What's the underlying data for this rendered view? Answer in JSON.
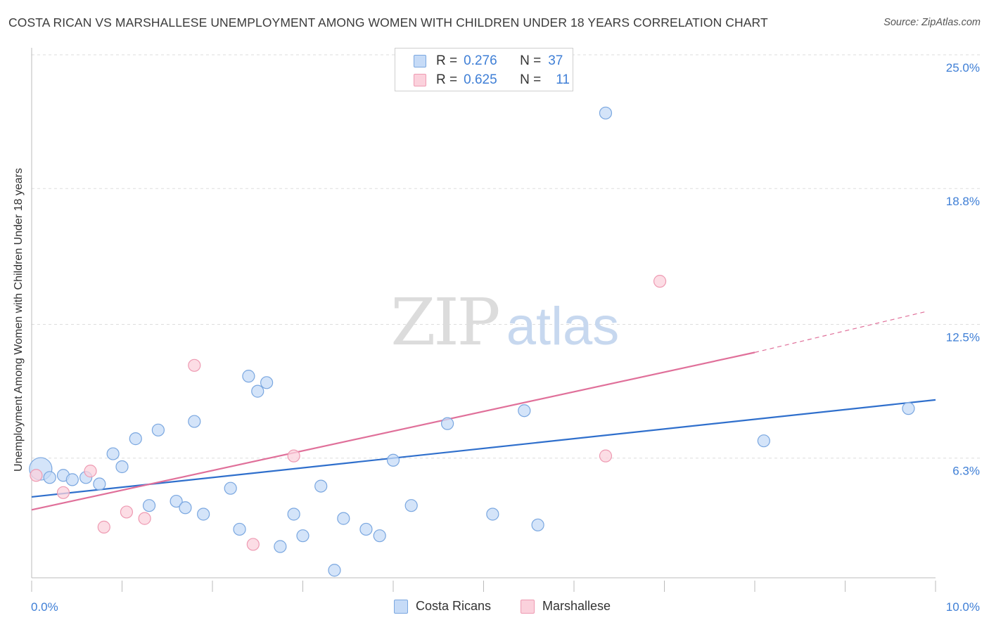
{
  "title": "COSTA RICAN VS MARSHALLESE UNEMPLOYMENT AMONG WOMEN WITH CHILDREN UNDER 18 YEARS CORRELATION CHART",
  "source": "Source: ZipAtlas.com",
  "watermark": {
    "zip": "ZIP",
    "atlas": "atlas"
  },
  "legend": {
    "rows": [
      {
        "r_label": "R =",
        "r_value": "0.276",
        "n_label": "N =",
        "n_value": "37"
      },
      {
        "r_label": "R =",
        "r_value": "0.625",
        "n_label": "N =",
        "n_value": "11"
      }
    ]
  },
  "bottom_legend": [
    "Costa Ricans",
    "Marshallese"
  ],
  "chart_data": {
    "type": "scatter",
    "title": "COSTA RICAN VS MARSHALLESE UNEMPLOYMENT AMONG WOMEN WITH CHILDREN UNDER 18 YEARS CORRELATION CHART",
    "xlabel": "",
    "ylabel": "Unemployment Among Women with Children Under 18 years",
    "xlim": [
      0,
      10
    ],
    "ylim": [
      0,
      25
    ],
    "x_tick_labels": [
      "0.0%",
      "10.0%"
    ],
    "y_ticks": [
      6.3,
      12.5,
      18.8,
      25.0
    ],
    "y_tick_labels": [
      "6.3%",
      "12.5%",
      "18.8%",
      "25.0%"
    ],
    "grid": "horizontal dashed",
    "legend_position": "top-center",
    "colors": {
      "costa_fill": "#c6dbf7",
      "costa_stroke": "#7aa7e0",
      "costa_line": "#2f6fcc",
      "marsh_fill": "#fbd1dc",
      "marsh_stroke": "#ee9ab2",
      "marsh_line": "#e0709a",
      "tick_label": "#3f7fd6",
      "grid": "#dddddd"
    },
    "series": [
      {
        "name": "Costa Ricans",
        "points": [
          [
            0.1,
            5.8
          ],
          [
            0.2,
            5.4
          ],
          [
            0.35,
            5.5
          ],
          [
            0.45,
            5.3
          ],
          [
            0.6,
            5.4
          ],
          [
            0.75,
            5.1
          ],
          [
            0.9,
            6.5
          ],
          [
            1.0,
            5.9
          ],
          [
            1.15,
            7.2
          ],
          [
            1.3,
            4.1
          ],
          [
            1.4,
            7.6
          ],
          [
            1.6,
            4.3
          ],
          [
            1.7,
            4.0
          ],
          [
            1.8,
            8.0
          ],
          [
            1.9,
            3.7
          ],
          [
            2.2,
            4.9
          ],
          [
            2.3,
            3.0
          ],
          [
            2.4,
            10.1
          ],
          [
            2.5,
            9.4
          ],
          [
            2.6,
            9.8
          ],
          [
            2.75,
            2.2
          ],
          [
            2.9,
            3.7
          ],
          [
            3.0,
            2.7
          ],
          [
            3.2,
            5.0
          ],
          [
            3.35,
            1.1
          ],
          [
            3.45,
            3.5
          ],
          [
            3.7,
            3.0
          ],
          [
            3.85,
            2.7
          ],
          [
            4.0,
            6.2
          ],
          [
            4.2,
            4.1
          ],
          [
            4.6,
            7.9
          ],
          [
            5.1,
            3.7
          ],
          [
            5.45,
            8.5
          ],
          [
            5.6,
            3.2
          ],
          [
            6.35,
            22.3
          ],
          [
            8.1,
            7.1
          ],
          [
            9.7,
            8.6
          ]
        ],
        "trend": {
          "x": [
            0.0,
            10.0
          ],
          "y": [
            4.5,
            9.0
          ]
        }
      },
      {
        "name": "Marshallese",
        "points": [
          [
            0.05,
            5.5
          ],
          [
            0.35,
            4.7
          ],
          [
            0.65,
            5.7
          ],
          [
            0.8,
            3.1
          ],
          [
            1.05,
            3.8
          ],
          [
            1.25,
            3.5
          ],
          [
            1.8,
            10.6
          ],
          [
            2.45,
            2.3
          ],
          [
            2.9,
            6.4
          ],
          [
            6.35,
            6.4
          ],
          [
            6.95,
            14.5
          ]
        ],
        "trend": {
          "x": [
            0.0,
            8.0
          ],
          "y": [
            3.9,
            11.2
          ]
        },
        "trend_extension": {
          "x": [
            8.0,
            9.9
          ],
          "y": [
            11.2,
            13.1
          ]
        }
      }
    ]
  }
}
